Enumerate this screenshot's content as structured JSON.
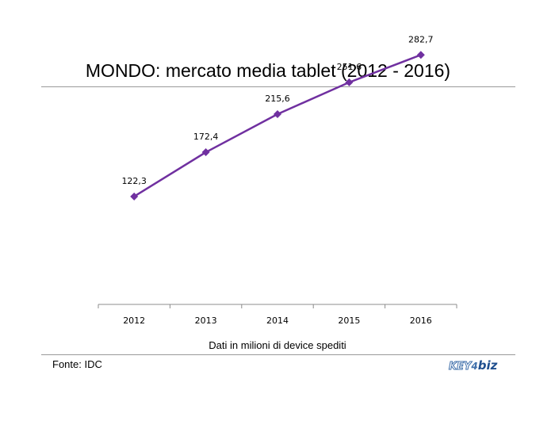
{
  "title": "MONDO: mercato media tablet (2012 - 2016)",
  "source": "Fonte: IDC",
  "logo": {
    "key": "KEY",
    "biz": "biz"
  },
  "colors": {
    "line": "#7030a0",
    "axis": "#8c8c8c",
    "rule": "#9a9a9a"
  },
  "chart_data": {
    "type": "line",
    "categories": [
      "2012",
      "2013",
      "2014",
      "2015",
      "2016"
    ],
    "values": [
      122.3,
      172.4,
      215.6,
      251.6,
      282.7
    ],
    "data_labels": [
      "122,3",
      "172,4",
      "215,6",
      "251,6",
      "282,7"
    ],
    "xlabel": "Dati in milioni di device spediti",
    "ylabel": "",
    "ylim": [
      0,
      300
    ],
    "grid": false,
    "legend": "none",
    "marker": "diamond"
  }
}
